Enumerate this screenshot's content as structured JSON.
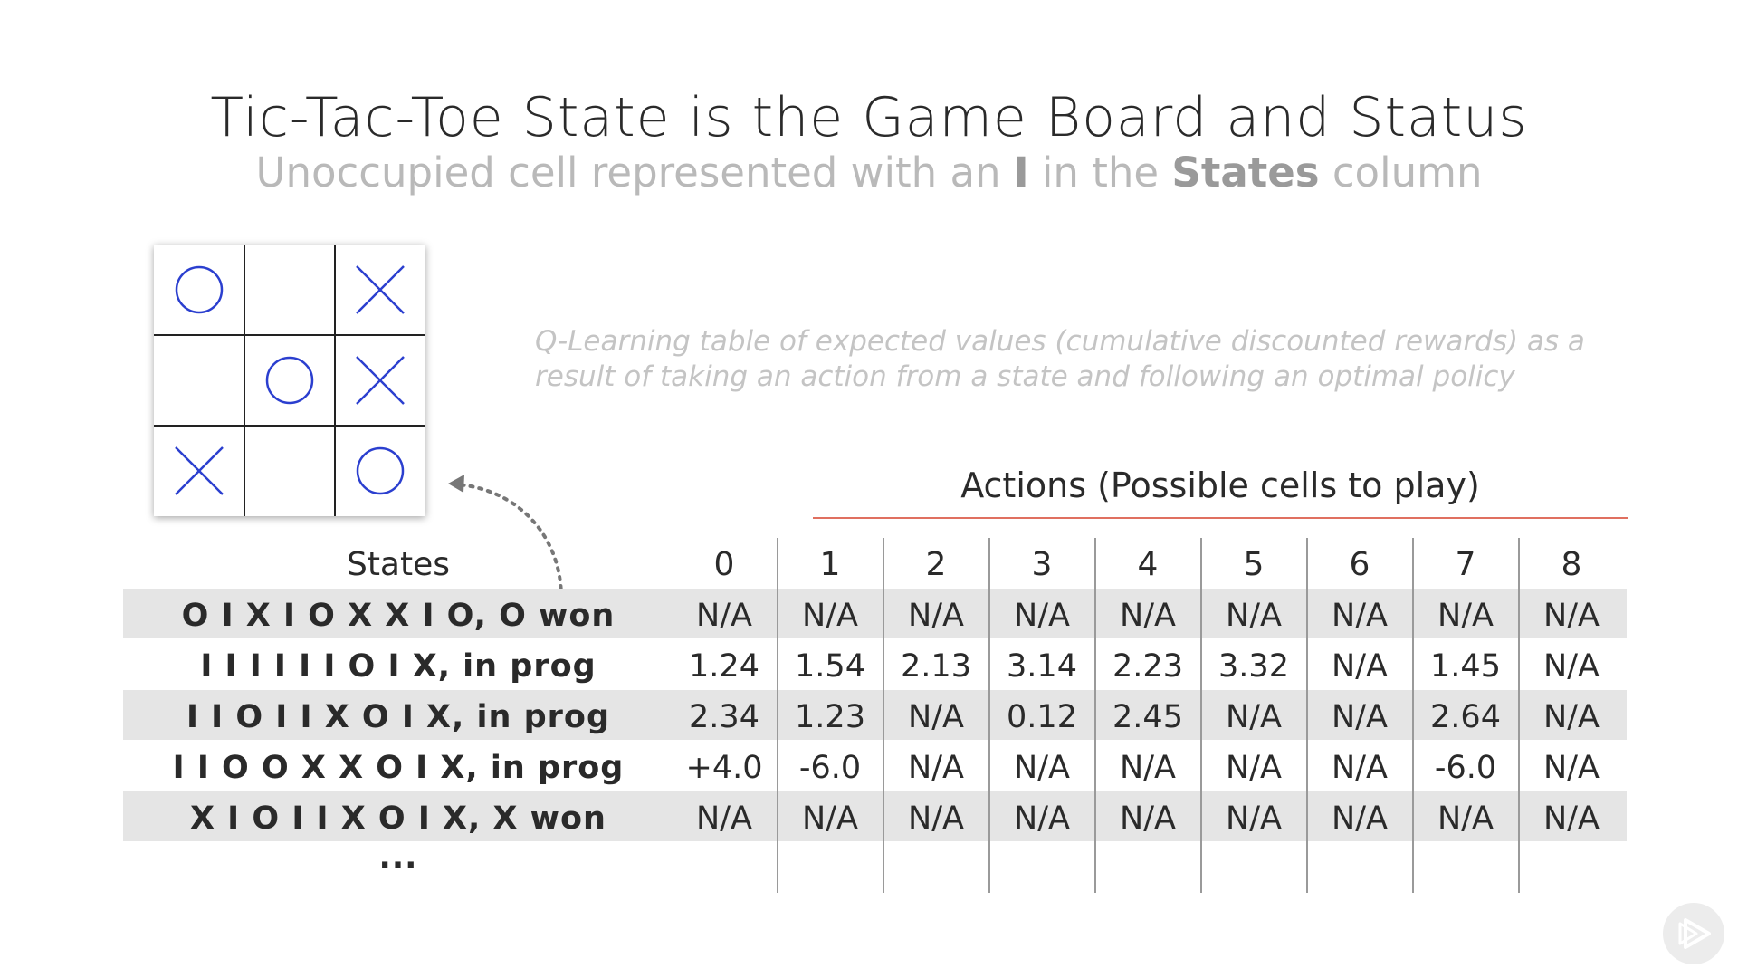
{
  "slide": {
    "title": "Tic-Tac-Toe State is the Game Board and Status",
    "subtitle_pre": "Unoccupied cell represented with an ",
    "subtitle_bold1": "I",
    "subtitle_mid": " in the ",
    "subtitle_bold2": "States",
    "subtitle_post": " column"
  },
  "board": {
    "cells": [
      "O",
      "",
      "X",
      "",
      "O",
      "X",
      "X",
      "",
      "O"
    ],
    "mark_color": "#2b3fcf"
  },
  "note": "Q-Learning table of expected values (cumulative discounted rewards) as a result of taking an action from a state and following an optimal policy",
  "table": {
    "actions_title": "Actions (Possible cells to play)",
    "states_header": "States",
    "action_headers": [
      "0",
      "1",
      "2",
      "3",
      "4",
      "5",
      "6",
      "7",
      "8"
    ],
    "rows": [
      {
        "state": "O I X I O X X I O, O won",
        "values": [
          "N/A",
          "N/A",
          "N/A",
          "N/A",
          "N/A",
          "N/A",
          "N/A",
          "N/A",
          "N/A"
        ]
      },
      {
        "state": "I I I I I I O I X, in prog",
        "values": [
          "1.24",
          "1.54",
          "2.13",
          "3.14",
          "2.23",
          "3.32",
          "N/A",
          "1.45",
          "N/A"
        ]
      },
      {
        "state": "I I O I I X O I X, in prog",
        "values": [
          "2.34",
          "1.23",
          "N/A",
          "0.12",
          "2.45",
          "N/A",
          "N/A",
          "2.64",
          "N/A"
        ]
      },
      {
        "state": "I I O O X X O I X, in prog",
        "values": [
          "+4.0",
          "-6.0",
          "N/A",
          "N/A",
          "N/A",
          "N/A",
          "N/A",
          "-6.0",
          "N/A"
        ]
      },
      {
        "state": "X I O I I X O I X, X won",
        "values": [
          "N/A",
          "N/A",
          "N/A",
          "N/A",
          "N/A",
          "N/A",
          "N/A",
          "N/A",
          "N/A"
        ]
      }
    ],
    "ellipsis": "..."
  },
  "colors": {
    "accent_rule": "#e07060",
    "band": "#e5e5e5"
  }
}
